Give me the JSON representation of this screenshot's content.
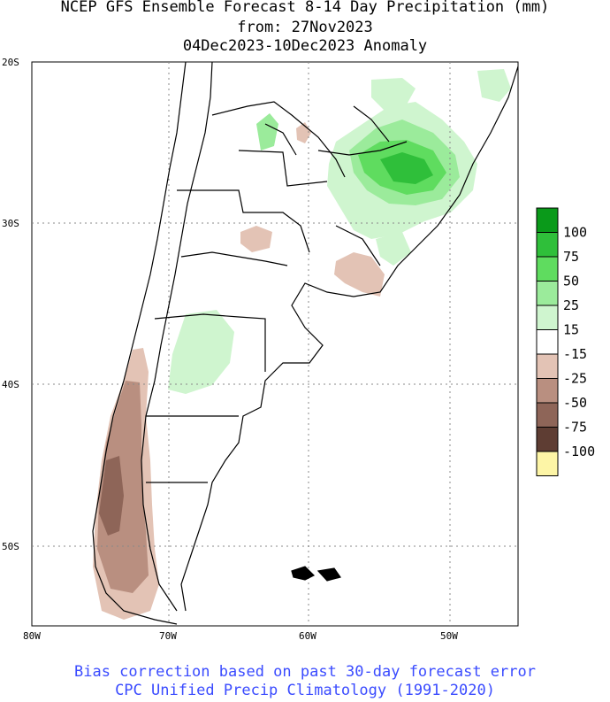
{
  "title": {
    "line1": "NCEP GFS Ensemble Forecast 8-14 Day Precipitation (mm)",
    "line2": "from: 27Nov2023",
    "line3": "04Dec2023-10Dec2023 Anomaly"
  },
  "axes": {
    "lat_labels": [
      "20S",
      "30S",
      "40S",
      "50S"
    ],
    "lon_labels": [
      "80W",
      "70W",
      "60W",
      "50W"
    ]
  },
  "colorbar": {
    "labels": [
      "100",
      "75",
      "50",
      "25",
      "15",
      "-15",
      "-25",
      "-50",
      "-75",
      "-100"
    ],
    "colors": [
      "#0a9a1a",
      "#2fbf3a",
      "#5fdc5f",
      "#9beb9b",
      "#cff5cf",
      "#ffffff",
      "#e3c3b5",
      "#b98f80",
      "#8e6558",
      "#5e3d33",
      "#fdf5a6"
    ]
  },
  "footer": {
    "line1": "Bias correction based on past 30-day forecast error",
    "line2": "CPC Unified Precip Climatology (1991-2020)",
    "color": "#3a4bff"
  },
  "map": {
    "land_color": "#ffffff",
    "border_color": "#000000",
    "grid_color": "#888888"
  }
}
